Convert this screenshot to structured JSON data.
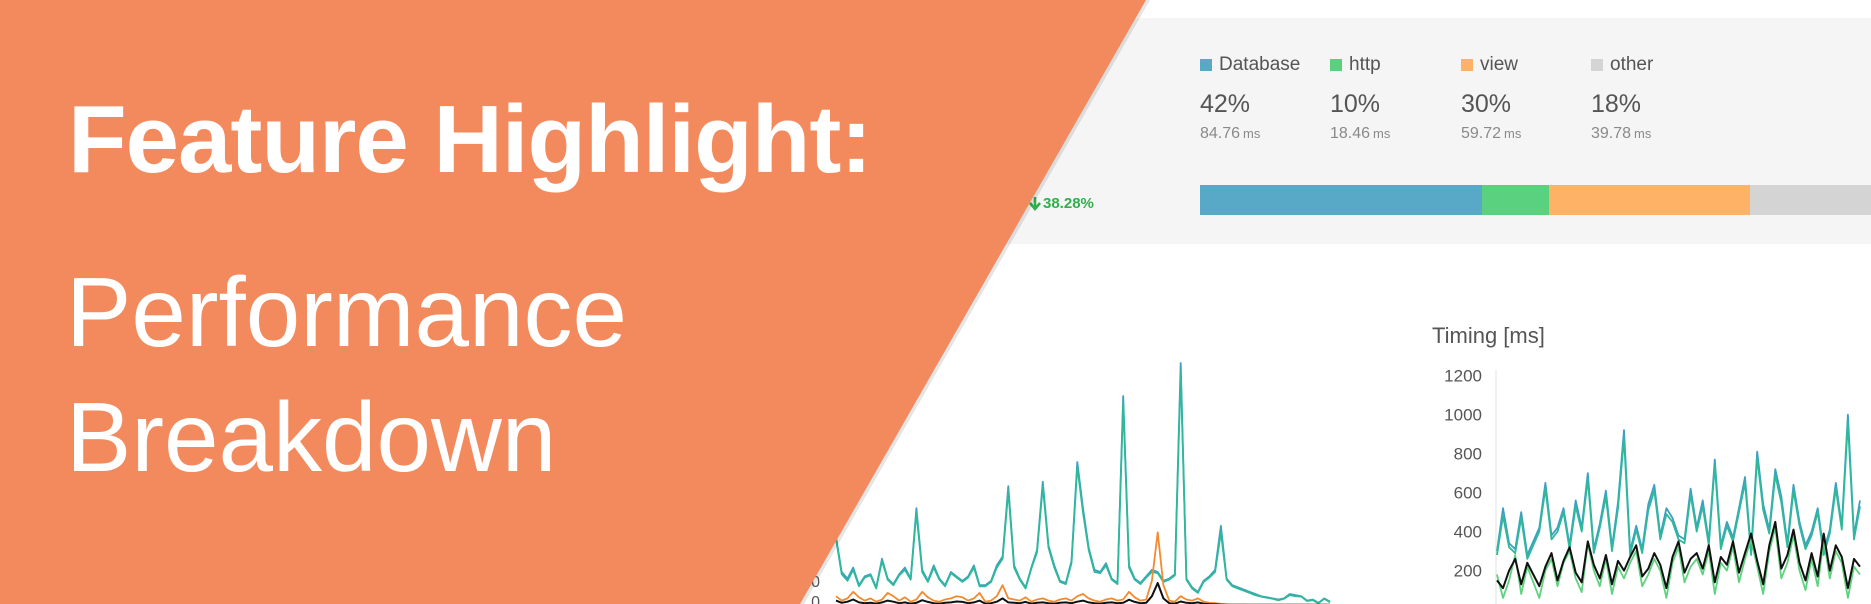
{
  "banner": {
    "headline": "Feature Highlight:",
    "subtitle_line1": "Performance",
    "subtitle_line2": "Breakdown",
    "color": "#f28a5e"
  },
  "summary": {
    "metrics": [
      {
        "name": "Database",
        "percent": "42%",
        "ms": "84.76",
        "unit": "ms",
        "color": "#58a8c8"
      },
      {
        "name": "http",
        "percent": "10%",
        "ms": "18.46",
        "unit": "ms",
        "color": "#5ad17f"
      },
      {
        "name": "view",
        "percent": "30%",
        "ms": "59.72",
        "unit": "ms",
        "color": "#fdb266"
      },
      {
        "name": "other",
        "percent": "18%",
        "ms": "39.78",
        "unit": "ms",
        "color": "#d4d4d4"
      }
    ],
    "delta": "38.28%",
    "delta_direction": "down"
  },
  "chart_data": [
    {
      "type": "line",
      "title": "",
      "ylabel": "",
      "y_ticks_visible": [
        "0",
        "0"
      ],
      "series": [
        {
          "color": "#3e9fc5",
          "values": [
            310,
            150,
            120,
            170,
            90,
            130,
            140,
            80,
            210,
            120,
            95,
            140,
            170,
            120,
            440,
            160,
            110,
            180,
            120,
            90,
            150,
            130,
            110,
            130,
            180,
            90,
            90,
            110,
            180,
            220,
            540,
            180,
            120,
            80,
            170,
            250,
            560,
            270,
            180,
            110,
            100,
            200,
            650,
            440,
            260,
            160,
            150,
            190,
            120,
            100,
            950,
            180,
            120,
            100,
            130,
            160,
            150,
            110,
            120,
            140,
            1100,
            120,
            80,
            60,
            110,
            130,
            160,
            360,
            120,
            90,
            80,
            70,
            60,
            50,
            40,
            35,
            30,
            25,
            30,
            50,
            45,
            40,
            20,
            25,
            10,
            30,
            15
          ]
        },
        {
          "color": "#2fb89a",
          "values": [
            300,
            140,
            110,
            160,
            85,
            125,
            135,
            75,
            200,
            115,
            90,
            135,
            160,
            115,
            420,
            150,
            105,
            170,
            115,
            85,
            145,
            125,
            105,
            125,
            170,
            85,
            85,
            105,
            170,
            210,
            520,
            170,
            115,
            75,
            165,
            240,
            540,
            260,
            170,
            105,
            95,
            190,
            630,
            420,
            250,
            150,
            145,
            180,
            115,
            95,
            920,
            170,
            115,
            95,
            125,
            150,
            145,
            105,
            115,
            135,
            1060,
            115,
            75,
            55,
            105,
            125,
            150,
            330,
            115,
            85,
            75,
            65,
            55,
            45,
            38,
            33,
            28,
            22,
            28,
            45,
            40,
            38,
            18,
            22,
            8,
            28,
            12
          ]
        },
        {
          "color": "#f28a2e",
          "values": [
            40,
            20,
            30,
            60,
            35,
            20,
            30,
            15,
            25,
            55,
            40,
            20,
            35,
            15,
            25,
            60,
            35,
            20,
            15,
            25,
            30,
            40,
            35,
            20,
            30,
            55,
            15,
            20,
            40,
            90,
            30,
            25,
            20,
            35,
            15,
            25,
            30,
            20,
            15,
            25,
            30,
            20,
            40,
            50,
            30,
            20,
            15,
            25,
            30,
            20,
            25,
            60,
            35,
            20,
            25,
            110,
            330,
            90,
            20,
            15,
            40,
            25,
            20,
            30,
            15,
            10,
            8,
            5,
            3,
            2,
            2,
            2,
            1,
            1,
            1,
            1,
            1,
            1,
            1,
            1,
            1,
            1,
            1,
            1,
            1,
            1,
            1
          ]
        },
        {
          "color": "#111111",
          "values": [
            20,
            10,
            15,
            25,
            12,
            8,
            10,
            6,
            12,
            20,
            15,
            8,
            12,
            6,
            10,
            22,
            14,
            8,
            6,
            10,
            12,
            16,
            14,
            8,
            12,
            20,
            6,
            8,
            15,
            30,
            12,
            10,
            8,
            14,
            6,
            10,
            12,
            8,
            6,
            10,
            12,
            8,
            15,
            20,
            12,
            8,
            6,
            10,
            12,
            8,
            10,
            24,
            14,
            8,
            10,
            40,
            100,
            30,
            8,
            6,
            16,
            10,
            8,
            12,
            6,
            4,
            3,
            2,
            1,
            1,
            1,
            1,
            1,
            1,
            1,
            1,
            1,
            1,
            1,
            1,
            1,
            1,
            1,
            1,
            1,
            1,
            1
          ]
        }
      ]
    },
    {
      "type": "line",
      "title": "Timing [ms]",
      "ylabel": "",
      "ylim": [
        0,
        1200
      ],
      "y_ticks": [
        0,
        200,
        400,
        600,
        800,
        1000,
        1200
      ],
      "series": [
        {
          "color": "#3e9fc5",
          "values": [
            300,
            520,
            340,
            310,
            500,
            280,
            350,
            420,
            650,
            380,
            420,
            520,
            330,
            560,
            420,
            700,
            310,
            440,
            610,
            320,
            550,
            920,
            300,
            430,
            310,
            540,
            640,
            380,
            520,
            470,
            380,
            360,
            620,
            420,
            560,
            350,
            770,
            330,
            450,
            370,
            520,
            680,
            300,
            810,
            540,
            410,
            720,
            580,
            340,
            640,
            450,
            330,
            400,
            520,
            300,
            410,
            650,
            430,
            1000,
            380,
            560
          ]
        },
        {
          "color": "#2fb89a",
          "values": [
            280,
            480,
            320,
            290,
            470,
            260,
            330,
            400,
            620,
            360,
            400,
            500,
            310,
            530,
            400,
            670,
            290,
            420,
            580,
            300,
            520,
            880,
            280,
            410,
            290,
            510,
            610,
            360,
            490,
            450,
            360,
            340,
            590,
            400,
            530,
            330,
            740,
            310,
            430,
            350,
            500,
            650,
            280,
            780,
            510,
            390,
            690,
            550,
            320,
            610,
            430,
            310,
            380,
            500,
            280,
            390,
            620,
            410,
            960,
            360,
            530
          ]
        },
        {
          "color": "#5fd17f",
          "values": [
            180,
            60,
            150,
            280,
            80,
            220,
            140,
            60,
            200,
            260,
            120,
            240,
            300,
            160,
            90,
            340,
            200,
            120,
            260,
            80,
            220,
            160,
            240,
            300,
            120,
            180,
            260,
            200,
            60,
            240,
            320,
            140,
            220,
            260,
            180,
            300,
            80,
            240,
            200,
            320,
            140,
            260,
            360,
            220,
            80,
            300,
            420,
            160,
            240,
            380,
            200,
            100,
            260,
            120,
            360,
            160,
            300,
            240,
            60,
            220,
            180
          ]
        },
        {
          "color": "#111111",
          "values": [
            150,
            110,
            200,
            260,
            130,
            240,
            180,
            120,
            220,
            290,
            150,
            250,
            320,
            190,
            140,
            350,
            230,
            160,
            280,
            130,
            250,
            200,
            270,
            330,
            170,
            210,
            290,
            230,
            110,
            270,
            350,
            190,
            260,
            290,
            210,
            330,
            140,
            270,
            230,
            350,
            190,
            290,
            390,
            250,
            130,
            330,
            450,
            210,
            280,
            410,
            240,
            150,
            290,
            170,
            390,
            200,
            330,
            270,
            110,
            260,
            220
          ]
        }
      ]
    }
  ]
}
